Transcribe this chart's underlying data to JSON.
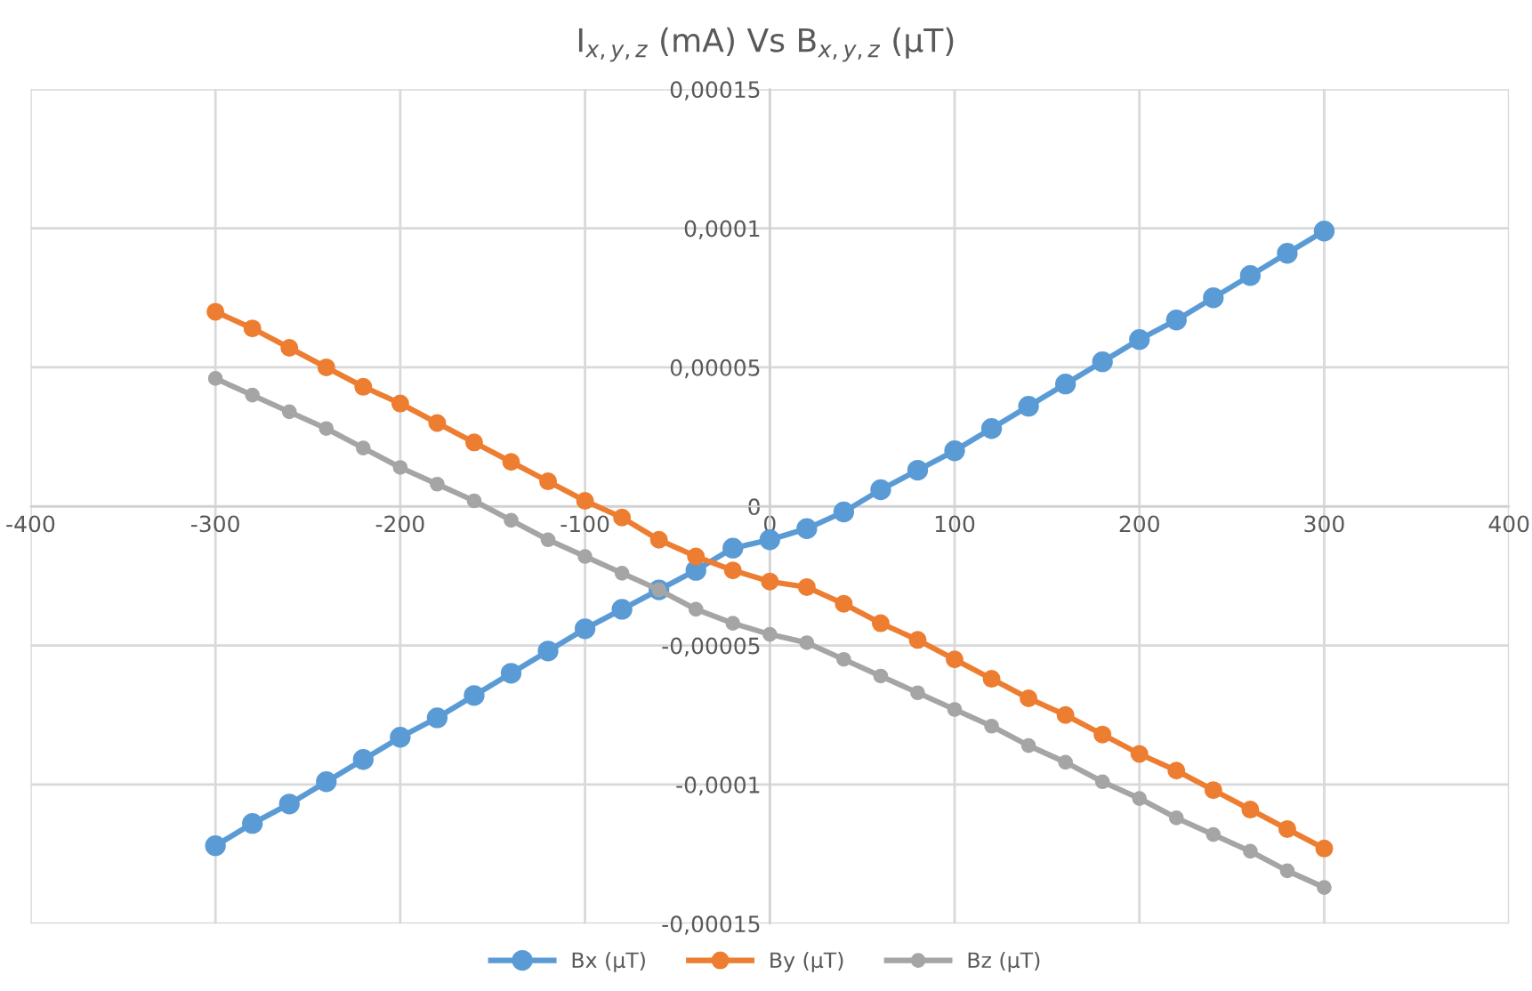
{
  "chart_data": {
    "type": "line",
    "title": "I$_{x,y,z}$ (mA) Vs B$_{x,y,z}$ (μT)",
    "x": [
      -300,
      -280,
      -260,
      -240,
      -220,
      -200,
      -180,
      -160,
      -140,
      -120,
      -100,
      -80,
      -60,
      -40,
      -20,
      0,
      20,
      40,
      60,
      80,
      100,
      120,
      140,
      160,
      180,
      200,
      220,
      240,
      260,
      280,
      300
    ],
    "series": [
      {
        "name": "Bx (μT)",
        "color": "#5b9bd5",
        "values": [
          -0.000122,
          -0.000114,
          -0.000107,
          -9.9e-05,
          -9.1e-05,
          -8.3e-05,
          -7.6e-05,
          -6.8e-05,
          -6e-05,
          -5.2e-05,
          -4.4e-05,
          -3.7e-05,
          -3e-05,
          -2.3e-05,
          -1.5e-05,
          -1.2e-05,
          -8e-06,
          -2e-06,
          6e-06,
          1.3e-05,
          2e-05,
          2.8e-05,
          3.6e-05,
          4.4e-05,
          5.2e-05,
          6e-05,
          6.7e-05,
          7.5e-05,
          8.3e-05,
          9.1e-05,
          9.9e-05
        ]
      },
      {
        "name": "By (μT)",
        "color": "#ed7d31",
        "values": [
          7e-05,
          6.4e-05,
          5.7e-05,
          5e-05,
          4.3e-05,
          3.7e-05,
          3e-05,
          2.3e-05,
          1.6e-05,
          9e-06,
          2e-06,
          -4e-06,
          -1.2e-05,
          -1.8e-05,
          -2.3e-05,
          -2.7e-05,
          -2.9e-05,
          -3.5e-05,
          -4.2e-05,
          -4.8e-05,
          -5.5e-05,
          -6.2e-05,
          -6.9e-05,
          -7.5e-05,
          -8.2e-05,
          -8.9e-05,
          -9.5e-05,
          -0.000102,
          -0.000109,
          -0.000116,
          -0.000123
        ]
      },
      {
        "name": "Bz (μT)",
        "color": "#a5a5a5",
        "values": [
          4.6e-05,
          4e-05,
          3.4e-05,
          2.8e-05,
          2.1e-05,
          1.4e-05,
          8e-06,
          2e-06,
          -5e-06,
          -1.2e-05,
          -1.8e-05,
          -2.4e-05,
          -3e-05,
          -3.7e-05,
          -4.2e-05,
          -4.6e-05,
          -4.9e-05,
          -5.5e-05,
          -6.1e-05,
          -6.7e-05,
          -7.3e-05,
          -7.9e-05,
          -8.6e-05,
          -9.2e-05,
          -9.9e-05,
          -0.000105,
          -0.000112,
          -0.000118,
          -0.000124,
          -0.000131,
          -0.000137
        ]
      }
    ],
    "xlim": [
      -400,
      400
    ],
    "xticks": [
      -400,
      -300,
      -200,
      -100,
      0,
      100,
      200,
      300,
      400
    ],
    "ylim": [
      -0.00015,
      0.00015
    ],
    "yticks": [
      {
        "value": -0.00015,
        "label": "-0,00015"
      },
      {
        "value": -0.0001,
        "label": "-0,0001"
      },
      {
        "value": -5e-05,
        "label": "-0,00005"
      },
      {
        "value": 0,
        "label": "0"
      },
      {
        "value": 5e-05,
        "label": "0,00005"
      },
      {
        "value": 0.0001,
        "label": "0,0001"
      },
      {
        "value": 0.00015,
        "label": "0,00015"
      }
    ],
    "grid": true,
    "legend": "bottom",
    "marker": "circle",
    "line_style": "solid"
  }
}
